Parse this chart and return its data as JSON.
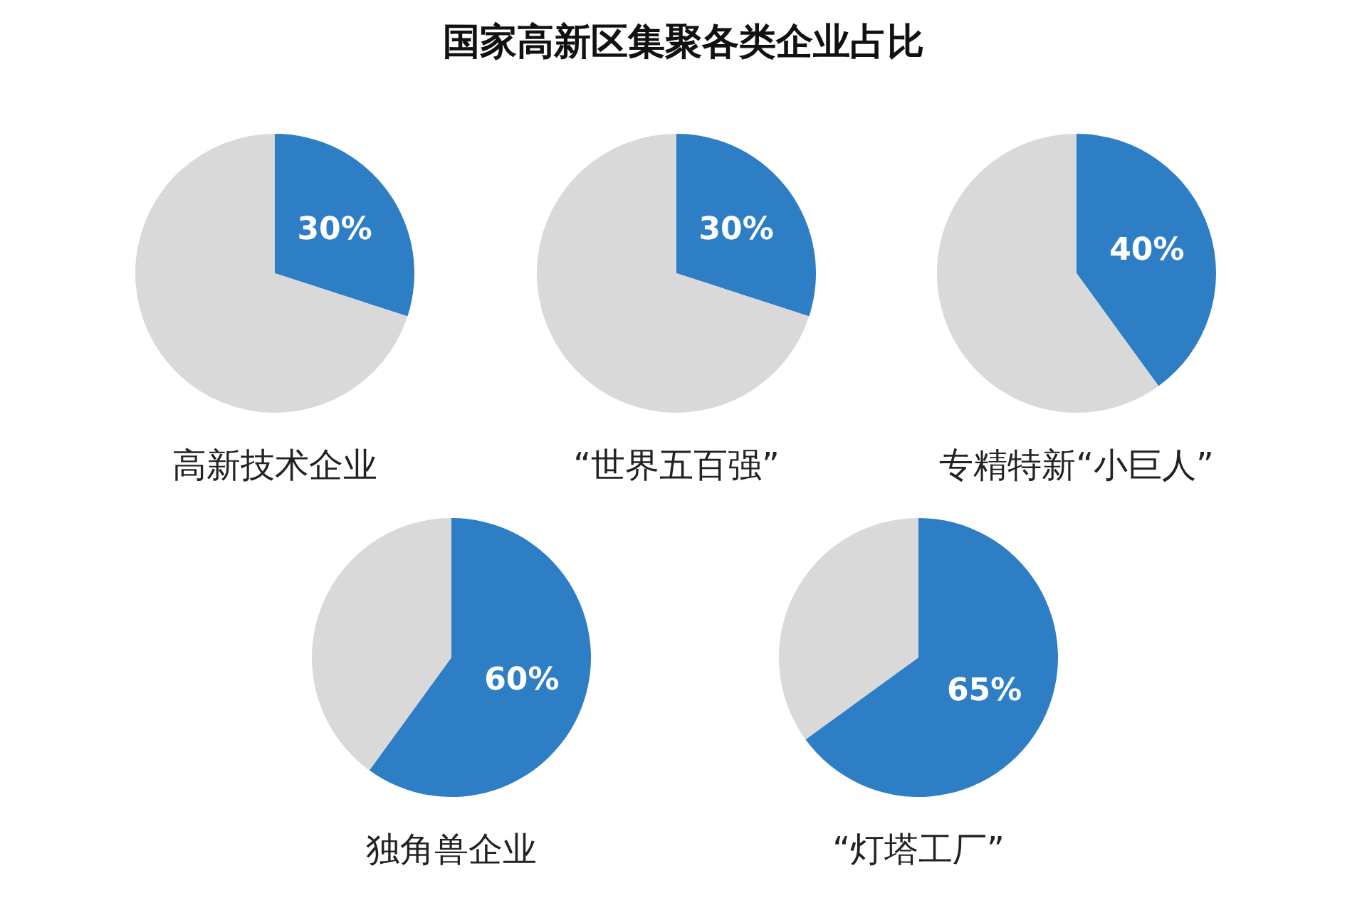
{
  "chart_data": [
    {
      "type": "other",
      "title": "国家高新区集聚各类企业占比"
    },
    {
      "type": "pie",
      "xlabel": "高新技术企业",
      "categories": [
        null,
        null
      ],
      "values": [
        30,
        70
      ],
      "colors": [
        "#2e7ec6",
        "#d9d9d9"
      ],
      "value_labels": [
        "30%",
        null
      ]
    },
    {
      "type": "pie",
      "xlabel": "“世界五百强”",
      "categories": [
        null,
        null
      ],
      "values": [
        30,
        70
      ],
      "colors": [
        "#2e7ec6",
        "#d9d9d9"
      ],
      "value_labels": [
        "30%",
        null
      ]
    },
    {
      "type": "pie",
      "xlabel": "专精特新“小巨人”",
      "categories": [
        null,
        null
      ],
      "values": [
        40,
        60
      ],
      "colors": [
        "#2e7ec6",
        "#d9d9d9"
      ],
      "value_labels": [
        "40%",
        null
      ]
    },
    {
      "type": "pie",
      "xlabel": "独角兽企业",
      "categories": [
        null,
        null
      ],
      "values": [
        60,
        40
      ],
      "colors": [
        "#2e7ec6",
        "#d9d9d9"
      ],
      "value_labels": [
        "60%",
        null
      ]
    },
    {
      "type": "pie",
      "xlabel": "“灯塔工厂”",
      "categories": [
        null,
        null
      ],
      "values": [
        65,
        35
      ],
      "colors": [
        "#2e7ec6",
        "#d9d9d9"
      ],
      "value_labels": [
        "65%",
        null
      ]
    }
  ]
}
